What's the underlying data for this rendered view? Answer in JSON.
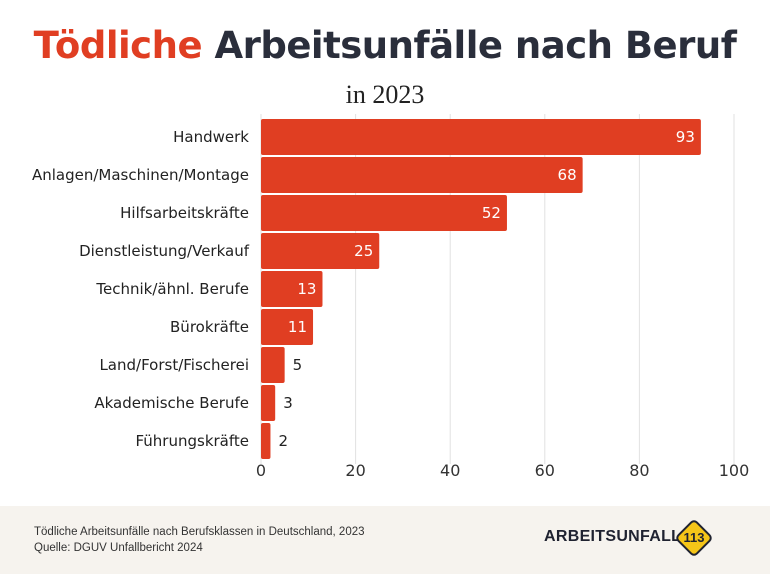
{
  "header": {
    "title_accent": "Tödliche",
    "title_rest": "Arbeitsunfälle nach Beruf",
    "subtitle": "in 2023"
  },
  "colors": {
    "bar": "#e03e22",
    "title_accent": "#e03e22",
    "title_dark": "#2a2e3b",
    "grid": "#e2e2e2",
    "footer_bg": "#f6f3ee",
    "badge": "#f5c518"
  },
  "chart_data": {
    "type": "bar",
    "orientation": "horizontal",
    "categories": [
      "Handwerk",
      "Anlagen/Maschinen/Montage",
      "Hilfsarbeitskräfte",
      "Dienstleistung/Verkauf",
      "Technik/ähnl. Berufe",
      "Bürokräfte",
      "Land/Forst/Fischerei",
      "Akademische Berufe",
      "Führungskräfte"
    ],
    "values": [
      93,
      68,
      52,
      25,
      13,
      11,
      5,
      3,
      2
    ],
    "xlim": [
      0,
      100
    ],
    "xticks": [
      0,
      20,
      40,
      60,
      80,
      100
    ],
    "grid": "vertical",
    "data_labels": true
  },
  "footer": {
    "line1": "Tödliche Arbeitsunfälle nach Berufsklassen in Deutschland, 2023",
    "line2": "Quelle: DGUV Unfallbericht 2024",
    "brand": "ARBEITSUNFALL",
    "badge_number": "113",
    "badge_icon": "diamond-road-sign-icon"
  }
}
